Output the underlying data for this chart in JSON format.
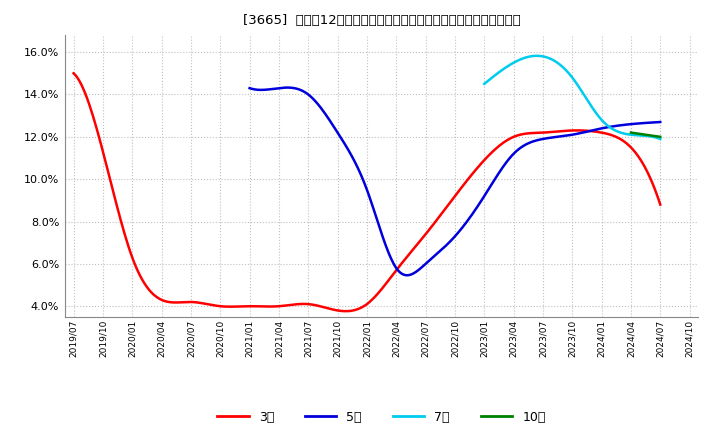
{
  "title": "[3665]  売上高12か月移動合計の対前年同期増減率の標準偏差の推移",
  "ylim": [
    0.035,
    0.168
  ],
  "yticks": [
    0.04,
    0.06,
    0.08,
    0.1,
    0.12,
    0.14,
    0.16
  ],
  "background_color": "#ffffff",
  "plot_bg_color": "#ffffff",
  "grid_color": "#c0c0c0",
  "series": {
    "3年": {
      "color": "#ff0000",
      "x": [
        0,
        1,
        2,
        3,
        4,
        5,
        6,
        7,
        8,
        9,
        10,
        11,
        12,
        13,
        14,
        15,
        16,
        17,
        18,
        19,
        20
      ],
      "y": [
        0.15,
        0.113,
        0.063,
        0.043,
        0.042,
        0.04,
        0.04,
        0.04,
        0.041,
        0.038,
        0.041,
        0.057,
        0.074,
        0.092,
        0.109,
        0.12,
        0.122,
        0.123,
        0.122,
        0.115,
        0.088
      ]
    },
    "5年": {
      "color": "#0000dd",
      "x": [
        6,
        7,
        8,
        9,
        10,
        11,
        12,
        13,
        14,
        15,
        16,
        17,
        18,
        19,
        20
      ],
      "y": [
        0.143,
        0.143,
        0.14,
        0.122,
        0.095,
        0.058,
        0.06,
        0.073,
        0.092,
        0.112,
        0.119,
        0.121,
        0.124,
        0.126,
        0.127
      ]
    },
    "7年": {
      "color": "#00ccee",
      "x": [
        14,
        15,
        16,
        17,
        18,
        19,
        20
      ],
      "y": [
        0.145,
        0.155,
        0.158,
        0.148,
        0.128,
        0.121,
        0.119
      ]
    },
    "10年": {
      "color": "#008000",
      "x": [
        19,
        20
      ],
      "y": [
        0.122,
        0.12
      ]
    }
  },
  "legend_labels": [
    "3年",
    "5年",
    "7年",
    "10年"
  ],
  "legend_colors": [
    "#ff0000",
    "#0000dd",
    "#00ccee",
    "#008000"
  ],
  "xtick_labels": [
    "2019/07",
    "2019/10",
    "2020/01",
    "2020/04",
    "2020/07",
    "2020/10",
    "2021/01",
    "2021/04",
    "2021/07",
    "2021/10",
    "2022/01",
    "2022/04",
    "2022/07",
    "2022/10",
    "2023/01",
    "2023/04",
    "2023/07",
    "2023/10",
    "2024/01",
    "2024/04",
    "2024/07",
    "2024/10"
  ]
}
